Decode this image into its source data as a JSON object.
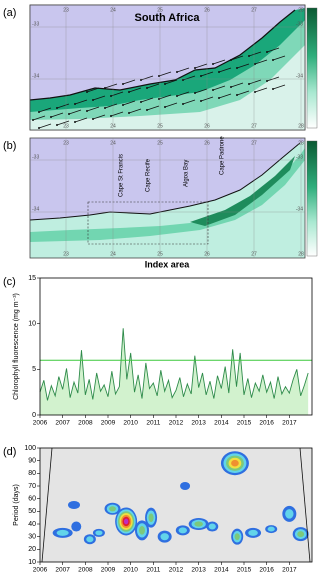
{
  "maps": [
    {
      "panel_label": "(a)",
      "title": "South Africa",
      "lon_ticks": [
        "23",
        "24",
        "25",
        "26",
        "27",
        "28"
      ],
      "lat_ticks": [
        "-33",
        "-34"
      ]
    },
    {
      "panel_label": "(b)",
      "lon_ticks": [
        "23",
        "24",
        "25",
        "26",
        "27",
        "28"
      ],
      "lat_ticks": [
        "-33",
        "-34"
      ],
      "place_labels": [
        "Cape St Francis",
        "Cape Recife",
        "Algoa Bay",
        "Cape Padrone"
      ],
      "caption": "Index area"
    }
  ],
  "chart_data": [
    {
      "type": "line",
      "panel_label": "(c)",
      "ylabel": "Chlorophyll fluorescence (mg m⁻³)",
      "xlim": [
        2006,
        2018
      ],
      "xticks": [
        2006,
        2007,
        2008,
        2009,
        2010,
        2011,
        2012,
        2013,
        2014,
        2015,
        2016,
        2017
      ],
      "ylim": [
        0,
        15
      ],
      "yticks": [
        0,
        5,
        10,
        15
      ],
      "threshold": 6,
      "threshold_color": "#3cc83c",
      "series": [
        {
          "color": "#2e8b4a",
          "x": [
            2006.0,
            2006.17,
            2006.33,
            2006.5,
            2006.67,
            2006.83,
            2007.0,
            2007.17,
            2007.33,
            2007.5,
            2007.67,
            2007.83,
            2008.0,
            2008.17,
            2008.33,
            2008.5,
            2008.67,
            2008.83,
            2009.0,
            2009.17,
            2009.33,
            2009.5,
            2009.67,
            2009.83,
            2010.0,
            2010.17,
            2010.33,
            2010.5,
            2010.67,
            2010.83,
            2011.0,
            2011.17,
            2011.33,
            2011.5,
            2011.67,
            2011.83,
            2012.0,
            2012.17,
            2012.33,
            2012.5,
            2012.67,
            2012.83,
            2013.0,
            2013.17,
            2013.33,
            2013.5,
            2013.67,
            2013.83,
            2014.0,
            2014.17,
            2014.33,
            2014.5,
            2014.67,
            2014.83,
            2015.0,
            2015.17,
            2015.33,
            2015.5,
            2015.67,
            2015.83,
            2016.0,
            2016.17,
            2016.33,
            2016.5,
            2016.67,
            2016.83,
            2017.0,
            2017.17,
            2017.33,
            2017.5,
            2017.67,
            2017.83
          ],
          "values": [
            2.5,
            3.8,
            1.6,
            3.2,
            2.1,
            4.2,
            2.8,
            5.1,
            1.9,
            3.6,
            2.4,
            7.1,
            2.2,
            3.9,
            1.7,
            4.6,
            2.6,
            3.3,
            2.0,
            4.8,
            2.3,
            3.1,
            9.5,
            3.9,
            6.8,
            2.5,
            4.4,
            1.8,
            5.7,
            2.9,
            3.5,
            2.1,
            4.9,
            2.6,
            3.8,
            1.9,
            2.7,
            4.1,
            2.0,
            3.4,
            2.3,
            6.5,
            3.0,
            4.6,
            2.2,
            3.7,
            1.8,
            4.3,
            2.9,
            5.3,
            2.4,
            7.2,
            3.1,
            6.8,
            2.2,
            4.0,
            1.9,
            3.5,
            2.6,
            4.4,
            2.5,
            3.6,
            1.8,
            4.2,
            2.3,
            3.1,
            2.4,
            3.9,
            5.0,
            2.1,
            3.3,
            4.6
          ]
        }
      ]
    },
    {
      "type": "wavelet",
      "panel_label": "(d)",
      "ylabel": "Period (days)",
      "xlim": [
        2006,
        2018
      ],
      "xticks": [
        2006,
        2007,
        2008,
        2009,
        2010,
        2011,
        2012,
        2013,
        2014,
        2015,
        2016,
        2017
      ],
      "ylim": [
        10,
        100
      ],
      "yticks": [
        10,
        20,
        30,
        40,
        50,
        60,
        70,
        80,
        90,
        100
      ]
    }
  ]
}
